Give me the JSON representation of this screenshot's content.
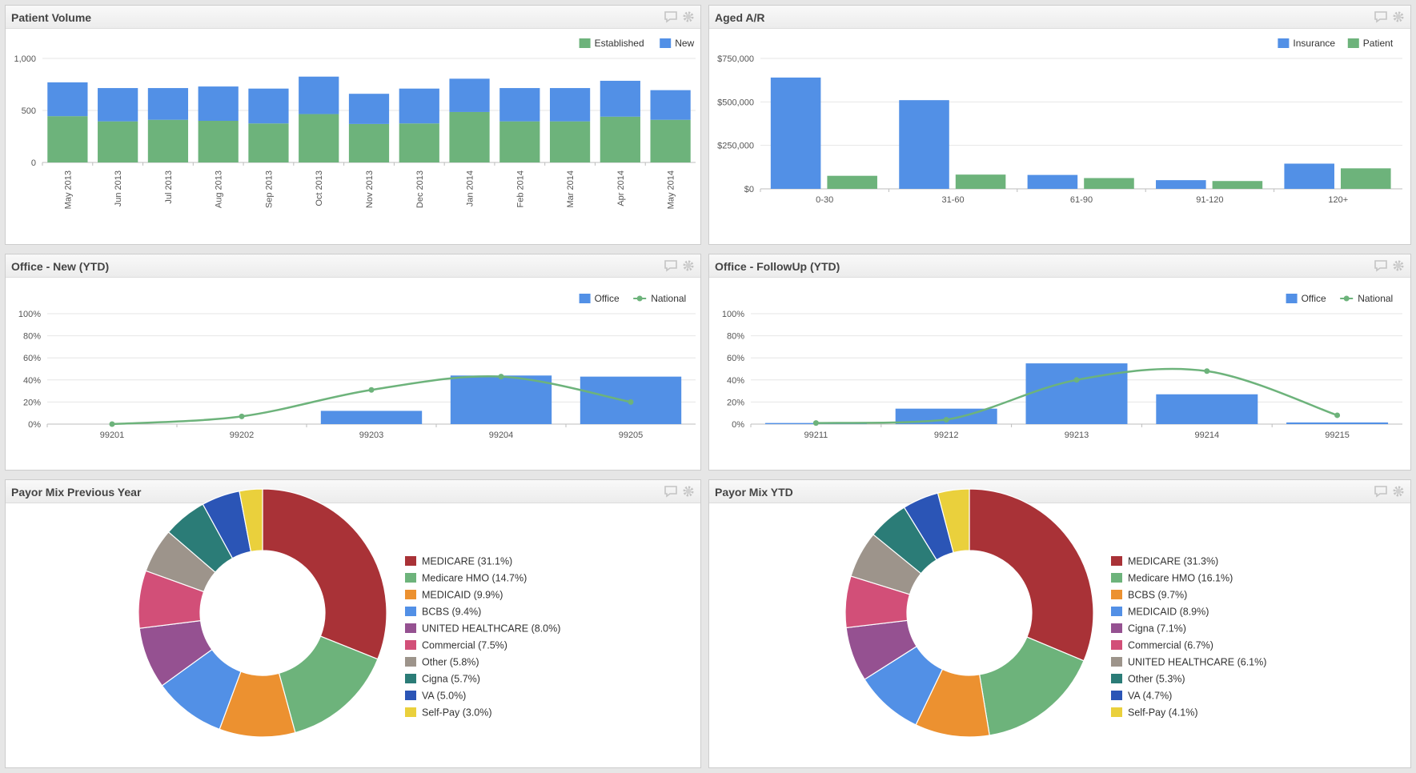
{
  "panels": {
    "p1": {
      "title": "Patient Volume"
    },
    "p2": {
      "title": "Aged A/R"
    },
    "p3": {
      "title": "Office - New (YTD)"
    },
    "p4": {
      "title": "Office - FollowUp (YTD)"
    },
    "p5": {
      "title": "Payor Mix Previous Year"
    },
    "p6": {
      "title": "Payor Mix YTD"
    }
  },
  "colors": {
    "blue": "#5290e6",
    "green": "#6db37b"
  },
  "chart_data": [
    {
      "id": "patient_volume",
      "type": "bar",
      "stacked": true,
      "categories": [
        "May 2013",
        "Jun 2013",
        "Jul 2013",
        "Aug 2013",
        "Sep 2013",
        "Oct 2013",
        "Nov 2013",
        "Dec 2013",
        "Jan 2014",
        "Feb 2014",
        "Mar 2014",
        "Apr 2014",
        "May 2014"
      ],
      "series": [
        {
          "name": "Established",
          "color": "#6db37b",
          "values": [
            445,
            395,
            410,
            400,
            375,
            465,
            370,
            375,
            485,
            395,
            395,
            440,
            410
          ]
        },
        {
          "name": "New",
          "color": "#5290e6",
          "values": [
            325,
            320,
            305,
            330,
            335,
            360,
            290,
            335,
            320,
            320,
            320,
            345,
            285
          ]
        }
      ],
      "yticks": [
        "0",
        "500",
        "1,000"
      ],
      "ylim": [
        0,
        1000
      ],
      "legend": "top-right"
    },
    {
      "id": "aged_ar",
      "type": "bar",
      "categories": [
        "0-30",
        "31-60",
        "61-90",
        "91-120",
        "120+"
      ],
      "series": [
        {
          "name": "Insurance",
          "color": "#5290e6",
          "values": [
            640000,
            510000,
            80000,
            50000,
            145000
          ]
        },
        {
          "name": "Patient",
          "color": "#6db37b",
          "values": [
            75000,
            82000,
            62000,
            45000,
            118000
          ]
        }
      ],
      "yticks": [
        "$0",
        "$250,000",
        "$500,000",
        "$750,000"
      ],
      "ylim": [
        0,
        750000
      ],
      "legend": "top-right"
    },
    {
      "id": "office_new",
      "type": "bar",
      "categories": [
        "99201",
        "99202",
        "99203",
        "99204",
        "99205"
      ],
      "series": [
        {
          "name": "Office",
          "kind": "bar",
          "color": "#5290e6",
          "values": [
            0,
            0,
            12,
            44,
            43
          ]
        },
        {
          "name": "National",
          "kind": "line",
          "color": "#6db37b",
          "values": [
            0,
            7,
            31,
            43,
            20
          ]
        }
      ],
      "yticks": [
        "0%",
        "20%",
        "40%",
        "60%",
        "80%",
        "100%"
      ],
      "ylim": [
        0,
        100
      ],
      "legend": "top-right"
    },
    {
      "id": "office_followup",
      "type": "bar",
      "categories": [
        "99211",
        "99212",
        "99213",
        "99214",
        "99215"
      ],
      "series": [
        {
          "name": "Office",
          "kind": "bar",
          "color": "#5290e6",
          "values": [
            1,
            14,
            55,
            27,
            1.5
          ]
        },
        {
          "name": "National",
          "kind": "line",
          "color": "#6db37b",
          "values": [
            1,
            4,
            40,
            48,
            8
          ]
        }
      ],
      "yticks": [
        "0%",
        "20%",
        "40%",
        "60%",
        "80%",
        "100%"
      ],
      "ylim": [
        0,
        100
      ],
      "legend": "top-right"
    },
    {
      "id": "payor_prev",
      "type": "pie",
      "donut": true,
      "slices": [
        {
          "label": "MEDICARE (31.1%)",
          "value": 31.1,
          "color": "#a93237"
        },
        {
          "label": "Medicare HMO (14.7%)",
          "value": 14.7,
          "color": "#6db37b"
        },
        {
          "label": "MEDICAID (9.9%)",
          "value": 9.9,
          "color": "#ec9130"
        },
        {
          "label": "BCBS (9.4%)",
          "value": 9.4,
          "color": "#5290e6"
        },
        {
          "label": "UNITED HEALTHCARE (8.0%)",
          "value": 8.0,
          "color": "#955191"
        },
        {
          "label": "Commercial (7.5%)",
          "value": 7.5,
          "color": "#d24f78"
        },
        {
          "label": "Other (5.8%)",
          "value": 5.8,
          "color": "#9d948b"
        },
        {
          "label": "Cigna (5.7%)",
          "value": 5.7,
          "color": "#2b7c77"
        },
        {
          "label": "VA (5.0%)",
          "value": 5.0,
          "color": "#2b55b6"
        },
        {
          "label": "Self-Pay (3.0%)",
          "value": 3.0,
          "color": "#ead03c"
        }
      ],
      "legend": "right"
    },
    {
      "id": "payor_ytd",
      "type": "pie",
      "donut": true,
      "slices": [
        {
          "label": "MEDICARE (31.3%)",
          "value": 31.3,
          "color": "#a93237"
        },
        {
          "label": "Medicare HMO (16.1%)",
          "value": 16.1,
          "color": "#6db37b"
        },
        {
          "label": "BCBS (9.7%)",
          "value": 9.7,
          "color": "#ec9130"
        },
        {
          "label": "MEDICAID (8.9%)",
          "value": 8.9,
          "color": "#5290e6"
        },
        {
          "label": "Cigna (7.1%)",
          "value": 7.1,
          "color": "#955191"
        },
        {
          "label": "Commercial (6.7%)",
          "value": 6.7,
          "color": "#d24f78"
        },
        {
          "label": "UNITED HEALTHCARE (6.1%)",
          "value": 6.1,
          "color": "#9d948b"
        },
        {
          "label": "Other (5.3%)",
          "value": 5.3,
          "color": "#2b7c77"
        },
        {
          "label": "VA (4.7%)",
          "value": 4.7,
          "color": "#2b55b6"
        },
        {
          "label": "Self-Pay (4.1%)",
          "value": 4.1,
          "color": "#ead03c"
        }
      ],
      "legend": "right"
    }
  ]
}
